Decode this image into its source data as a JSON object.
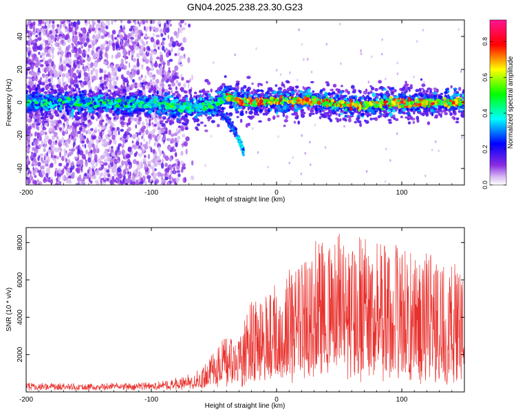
{
  "title": "GN04.2025.238.23.30.G23",
  "chart_data": [
    {
      "type": "heatmap",
      "xlabel": "Height of straight line (km)",
      "ylabel": "Frequency (Hz)",
      "xlim": [
        -200,
        150
      ],
      "ylim": [
        -50,
        50
      ],
      "xticks": [
        -200,
        -100,
        0,
        100
      ],
      "yticks": [
        -40,
        -20,
        0,
        20,
        40
      ],
      "colorbar": {
        "label": "Normalized spectral amplitude",
        "range": [
          0,
          0.92
        ],
        "ticks": [
          0.0,
          0.2,
          0.4,
          0.6,
          0.8
        ]
      },
      "ridge": [
        {
          "x": -200,
          "y": 0
        },
        {
          "x": -150,
          "y": 0
        },
        {
          "x": -100,
          "y": -1
        },
        {
          "x": -70,
          "y": -3
        },
        {
          "x": -50,
          "y": -2
        },
        {
          "x": -40,
          "y": 4
        },
        {
          "x": -30,
          "y": 1
        },
        {
          "x": -20,
          "y": 0
        },
        {
          "x": 0,
          "y": 1
        },
        {
          "x": 30,
          "y": 1
        },
        {
          "x": 60,
          "y": -2
        },
        {
          "x": 100,
          "y": 0
        },
        {
          "x": 150,
          "y": 0
        }
      ],
      "branch": [
        {
          "x": -50,
          "y": -3
        },
        {
          "x": -40,
          "y": -10
        },
        {
          "x": -35,
          "y": -15
        },
        {
          "x": -30,
          "y": -22
        },
        {
          "x": -26,
          "y": -30
        }
      ]
    },
    {
      "type": "line",
      "xlabel": "Height of straight line (km)",
      "ylabel": "SNR (10 * v/v)",
      "xlim": [
        -200,
        150
      ],
      "ylim": [
        0,
        8800
      ],
      "xticks": [
        -200,
        -100,
        0,
        100
      ],
      "yticks": [
        2000,
        4000,
        6000,
        8000
      ],
      "color": "#e8302c",
      "envelope": [
        {
          "x": -200,
          "base": 200,
          "peak": 500
        },
        {
          "x": -150,
          "base": 200,
          "peak": 450
        },
        {
          "x": -100,
          "base": 250,
          "peak": 500
        },
        {
          "x": -75,
          "base": 300,
          "peak": 800
        },
        {
          "x": -60,
          "base": 400,
          "peak": 1300
        },
        {
          "x": -45,
          "base": 500,
          "peak": 2800
        },
        {
          "x": -30,
          "base": 700,
          "peak": 3000
        },
        {
          "x": -20,
          "base": 900,
          "peak": 4800
        },
        {
          "x": 0,
          "base": 1200,
          "peak": 5800
        },
        {
          "x": 20,
          "base": 1500,
          "peak": 7100
        },
        {
          "x": 35,
          "base": 1700,
          "peak": 8100
        },
        {
          "x": 55,
          "base": 1800,
          "peak": 8600
        },
        {
          "x": 80,
          "base": 1600,
          "peak": 8300
        },
        {
          "x": 100,
          "base": 1400,
          "peak": 7600
        },
        {
          "x": 125,
          "base": 1000,
          "peak": 7400
        },
        {
          "x": 150,
          "base": 900,
          "peak": 6800
        }
      ]
    }
  ]
}
